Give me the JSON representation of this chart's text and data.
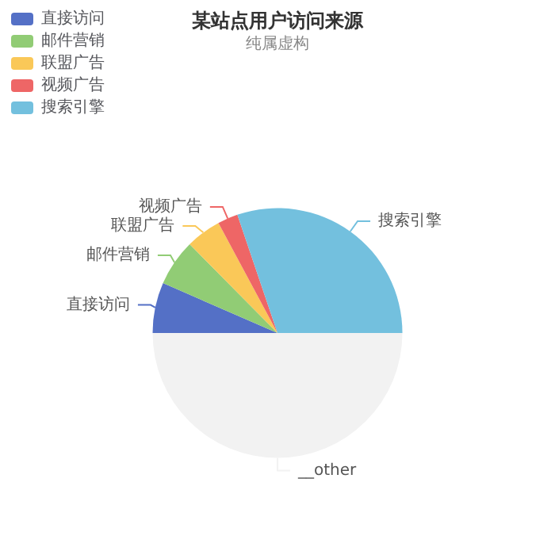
{
  "chart_data": {
    "type": "pie",
    "title": "某站点用户访问来源",
    "subtitle": "纯属虚构",
    "categories": [
      "直接访问",
      "邮件营销",
      "联盟广告",
      "视频广告",
      "搜索引擎",
      "__other"
    ],
    "values": [
      6.54,
      6.05,
      4.57,
      2.63,
      30.21,
      50
    ],
    "colors": [
      "#5470c6",
      "#91cc75",
      "#fac858",
      "#ee6666",
      "#73c0de",
      "#f2f2f2"
    ],
    "legend": "top left"
  }
}
